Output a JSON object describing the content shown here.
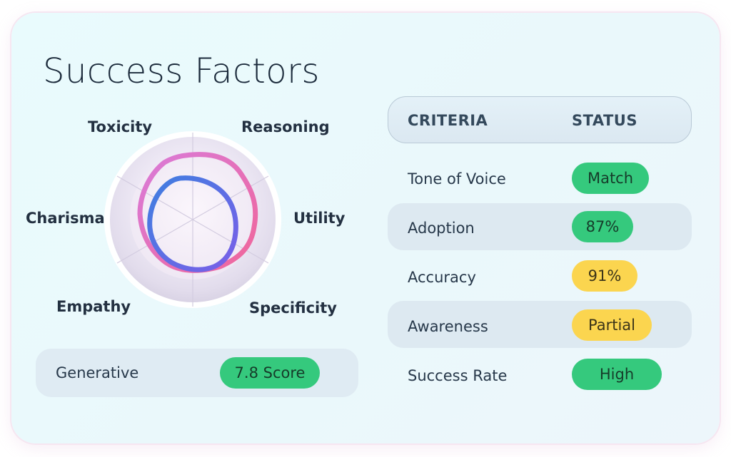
{
  "title": "Success Factors",
  "radar": {
    "axes": [
      "Toxicity",
      "Reasoning",
      "Utility",
      "Specificity",
      "Empathy",
      "Charisma"
    ]
  },
  "generative": {
    "label": "Generative",
    "score": "7.8 Score"
  },
  "table": {
    "headers": {
      "criteria": "CRITERIA",
      "status": "STATUS"
    },
    "rows": [
      {
        "criteria": "Tone of Voice",
        "status": "Match",
        "status_color": "green"
      },
      {
        "criteria": "Adoption",
        "status": "87%",
        "status_color": "green"
      },
      {
        "criteria": "Accuracy",
        "status": "91%",
        "status_color": "yellow"
      },
      {
        "criteria": "Awareness",
        "status": "Partial",
        "status_color": "yellow"
      },
      {
        "criteria": "Success Rate",
        "status": "High",
        "status_color": "green"
      }
    ]
  },
  "colors": {
    "green": "#35c97d",
    "yellow": "#fbd54f",
    "pink": "#e86aae",
    "blue": "#4a78e0",
    "title": "#1b2a3b"
  }
}
